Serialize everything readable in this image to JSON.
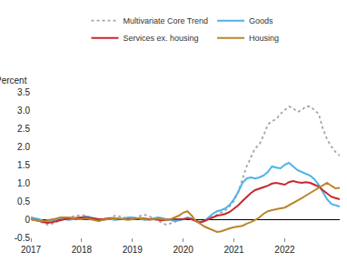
{
  "chart_data": {
    "type": "line",
    "ylabel": "Percent",
    "legend": "top",
    "grid": false,
    "categories": [
      "2017",
      null,
      null,
      null,
      null,
      null,
      null,
      null,
      null,
      null,
      null,
      null,
      "2018",
      null,
      null,
      null,
      null,
      null,
      null,
      null,
      null,
      null,
      null,
      null,
      "2019",
      null,
      null,
      null,
      null,
      null,
      null,
      null,
      null,
      null,
      null,
      null,
      "2020",
      null,
      null,
      null,
      null,
      null,
      null,
      null,
      null,
      null,
      null,
      null,
      "2021",
      null,
      null,
      null,
      null,
      null,
      null,
      null,
      null,
      null,
      null,
      null,
      "2022",
      null,
      null,
      null,
      null,
      null,
      null,
      null,
      null,
      null,
      null,
      null,
      null,
      null
    ],
    "ylim": [
      -0.5,
      3.5
    ],
    "yticks": [
      -0.5,
      0,
      0.5,
      {
        "value": 1,
        "label": "1.0"
      },
      1.5,
      {
        "value": 2,
        "label": "2.0"
      },
      2.5,
      {
        "value": 3,
        "label": "3.0"
      },
      3.5
    ],
    "series": [
      {
        "name": "Multivariate Core Trend",
        "color": "#a6a6a6",
        "line_style": "dotted",
        "values": [
          0.05,
          0.02,
          -0.05,
          -0.1,
          -0.15,
          -0.12,
          -0.08,
          -0.02,
          0.02,
          0.05,
          0.08,
          0.1,
          0.12,
          0.1,
          0.05,
          0.0,
          -0.05,
          -0.03,
          0.0,
          0.05,
          0.1,
          0.08,
          0.05,
          0.0,
          0.0,
          0.05,
          0.1,
          0.12,
          0.08,
          0.02,
          -0.05,
          -0.1,
          -0.15,
          -0.12,
          -0.08,
          -0.02,
          0.0,
          0.02,
          0.0,
          -0.05,
          -0.08,
          -0.05,
          0.02,
          0.08,
          0.12,
          0.18,
          0.25,
          0.35,
          0.5,
          0.75,
          1.1,
          1.45,
          1.7,
          1.95,
          2.05,
          2.3,
          2.6,
          2.7,
          2.75,
          2.9,
          3.0,
          3.1,
          3.05,
          2.95,
          3.0,
          3.1,
          3.1,
          3.0,
          2.9,
          2.5,
          2.2,
          2.0,
          1.85,
          1.75
        ]
      },
      {
        "name": "Goods",
        "color": "#4db3e6",
        "line_style": "solid",
        "values": [
          0.05,
          0.02,
          0.0,
          -0.05,
          -0.05,
          -0.03,
          0.0,
          0.02,
          0.0,
          -0.02,
          0.0,
          0.02,
          0.05,
          0.08,
          0.05,
          0.03,
          0.0,
          0.0,
          0.02,
          0.0,
          -0.02,
          0.0,
          0.02,
          0.05,
          0.05,
          0.03,
          0.0,
          -0.02,
          0.0,
          0.03,
          0.05,
          0.03,
          0.0,
          -0.02,
          -0.05,
          -0.03,
          0.0,
          0.05,
          0.02,
          -0.05,
          -0.1,
          -0.05,
          0.05,
          0.15,
          0.22,
          0.25,
          0.3,
          0.4,
          0.55,
          0.75,
          1.0,
          1.12,
          1.15,
          1.12,
          1.15,
          1.2,
          1.3,
          1.45,
          1.42,
          1.4,
          1.5,
          1.55,
          1.45,
          1.35,
          1.3,
          1.25,
          1.2,
          1.1,
          0.95,
          0.75,
          0.55,
          0.42,
          0.38,
          0.35
        ]
      },
      {
        "name": "Services ex. housing",
        "color": "#c8282d",
        "line_style": "solid",
        "values": [
          0.0,
          -0.02,
          -0.05,
          -0.08,
          -0.1,
          -0.08,
          -0.05,
          -0.03,
          0.0,
          0.02,
          0.03,
          0.05,
          0.05,
          0.05,
          0.03,
          0.02,
          0.0,
          0.0,
          0.02,
          0.03,
          0.02,
          0.0,
          0.0,
          0.0,
          0.0,
          0.02,
          0.03,
          0.02,
          0.0,
          0.0,
          -0.02,
          -0.03,
          -0.02,
          0.0,
          0.0,
          0.0,
          0.0,
          0.02,
          0.0,
          -0.05,
          -0.08,
          -0.05,
          0.0,
          0.05,
          0.1,
          0.12,
          0.15,
          0.2,
          0.28,
          0.38,
          0.5,
          0.62,
          0.72,
          0.8,
          0.85,
          0.88,
          0.92,
          0.98,
          1.0,
          0.98,
          0.95,
          1.02,
          1.05,
          1.02,
          1.0,
          1.02,
          1.0,
          0.95,
          0.9,
          0.8,
          0.7,
          0.62,
          0.58,
          0.55
        ]
      },
      {
        "name": "Housing",
        "color": "#b8862b",
        "line_style": "solid",
        "values": [
          0.0,
          -0.02,
          -0.05,
          -0.05,
          -0.03,
          0.0,
          0.02,
          0.05,
          0.05,
          0.05,
          0.03,
          0.0,
          0.0,
          0.02,
          0.0,
          -0.03,
          -0.05,
          -0.02,
          0.0,
          0.02,
          0.03,
          0.02,
          0.0,
          -0.02,
          0.0,
          0.02,
          0.03,
          0.0,
          -0.02,
          0.0,
          0.02,
          0.0,
          -0.02,
          0.0,
          0.05,
          0.1,
          0.18,
          0.22,
          0.1,
          -0.05,
          -0.12,
          -0.2,
          -0.25,
          -0.3,
          -0.35,
          -0.33,
          -0.28,
          -0.25,
          -0.22,
          -0.2,
          -0.18,
          -0.12,
          -0.08,
          -0.02,
          0.05,
          0.15,
          0.22,
          0.25,
          0.28,
          0.3,
          0.32,
          0.38,
          0.45,
          0.52,
          0.58,
          0.65,
          0.72,
          0.8,
          0.88,
          0.95,
          1.0,
          0.92,
          0.85,
          0.86
        ]
      }
    ]
  }
}
